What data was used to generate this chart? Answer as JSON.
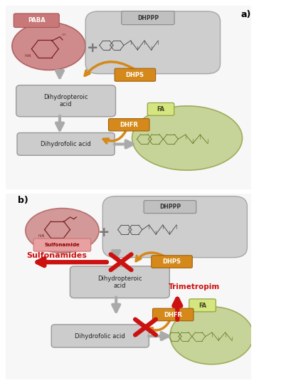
{
  "bg_color": "#ffffff",
  "panel_bg": "#f7f7f7",
  "panel_edge": "#cccccc",
  "paba_fill": "#c87878",
  "paba_edge": "#aa5555",
  "dhppp_fill": "#b8b8b8",
  "dhppp_edge": "#888888",
  "box_fill": "#cccccc",
  "box_edge": "#999999",
  "fa_fill": "#b8c97a",
  "fa_edge": "#8a9a3a",
  "fa_label_fill": "#d5e580",
  "dhps_fill": "#d4891a",
  "dhfr_fill": "#d4891a",
  "orange_text": "#d4891a",
  "arrow_gray": "#aaaaaa",
  "arrow_orange": "#d4891a",
  "arrow_red": "#cc1111",
  "sulf_fill": "#e8a0a0",
  "sulf_edge": "#cc7777",
  "mol_color": "#555555",
  "fa_mol_color": "#6a7a2a",
  "label_a": "a)",
  "label_b": "b)",
  "paba_text": "PABA",
  "dhppp_text": "DHPPP",
  "dhps_text": "DHPS",
  "dhfr_text": "DHFR",
  "fa_text": "FA",
  "dihydropteroic_text": "Dihydropteroic\nacid",
  "dihydrofolic_text": "Dihydrofolic acid",
  "sulfonamide_label": "Sulfonamide",
  "sulfonamides_text": "Sulfonamides",
  "trimetropim_text": "Trimetropim"
}
